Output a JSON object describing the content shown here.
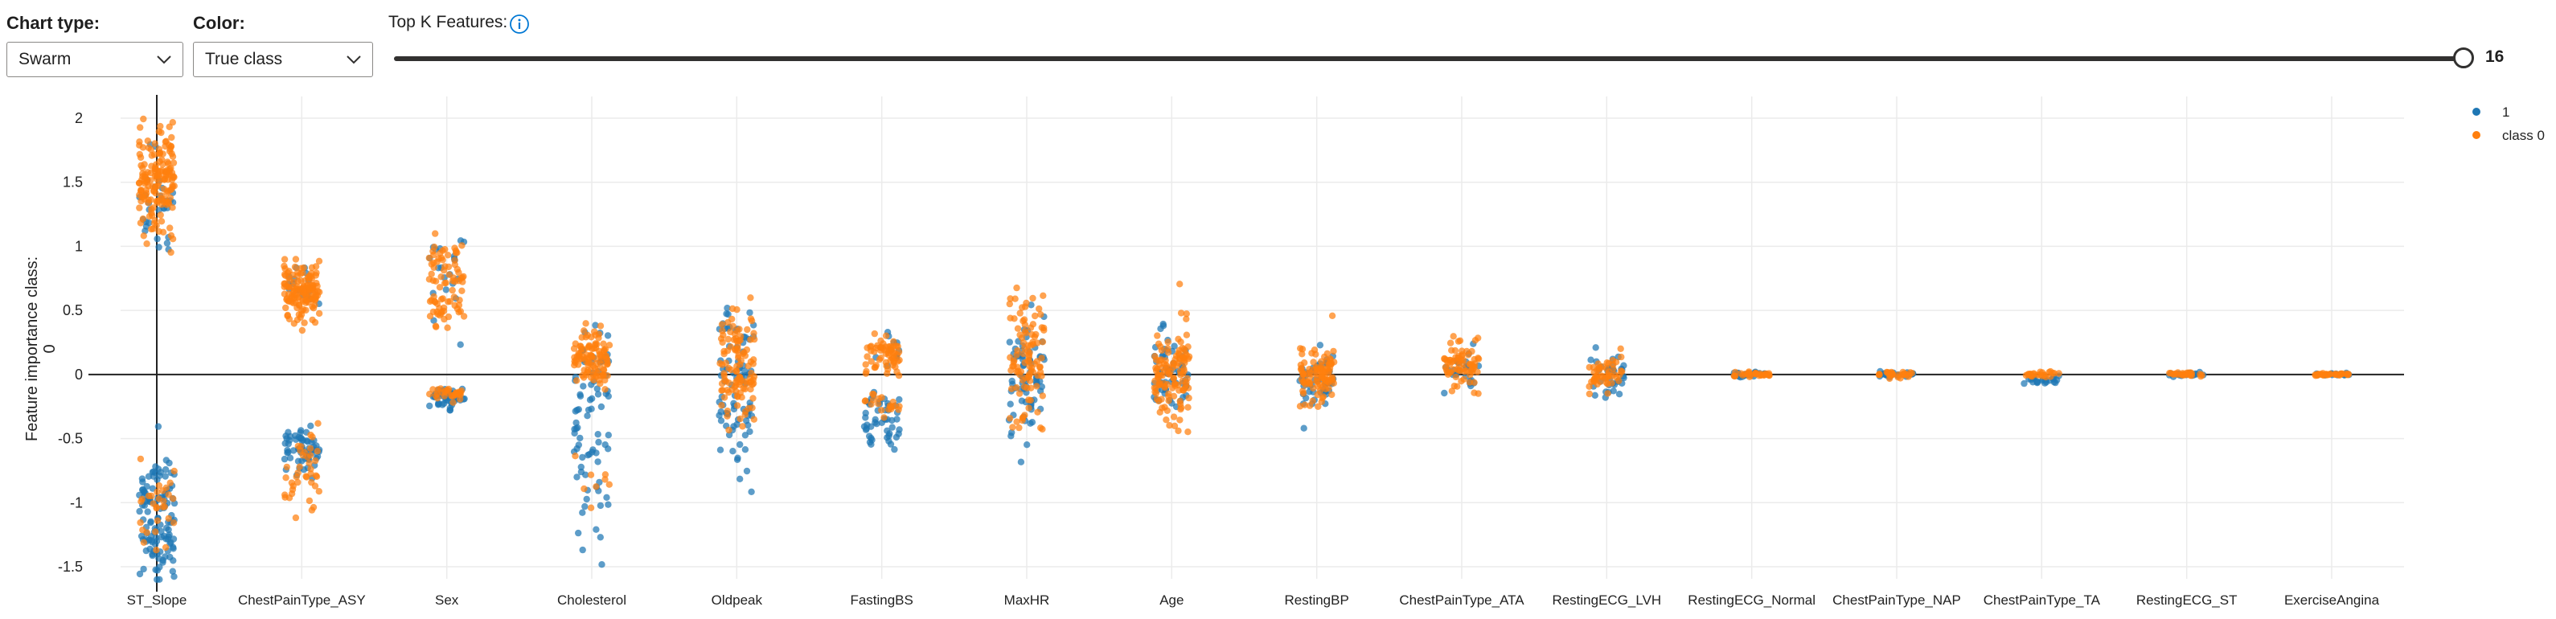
{
  "controls": {
    "chart_type": {
      "label": "Chart type:",
      "value": "Swarm"
    },
    "color": {
      "label": "Color:",
      "value": "True class"
    },
    "top_k": {
      "label": "Top K Features:",
      "value": "16"
    }
  },
  "colors": {
    "class_1": "#1f77b4",
    "class_0": "#ff7f0e",
    "zero_line": "#222222",
    "grid": "#ebebeb"
  },
  "chart_data": {
    "type": "scatter",
    "title": "",
    "xlabel": "",
    "ylabel": "Feature importance class: 0",
    "ylim": [
      -1.6,
      2.15
    ],
    "yticks": [
      2,
      1.5,
      1,
      0.5,
      0,
      -0.5,
      -1,
      -1.5
    ],
    "grid": true,
    "legend_position": "top-right",
    "categories": [
      "ST_Slope",
      "ChestPainType_ASY",
      "Sex",
      "Cholesterol",
      "Oldpeak",
      "FastingBS",
      "MaxHR",
      "Age",
      "RestingBP",
      "ChestPainType_ATA",
      "RestingECG_LVH",
      "RestingECG_Normal",
      "ChestPainType_NAP",
      "ChestPainType_TA",
      "RestingECG_ST",
      "ExerciseAngina"
    ],
    "series": [
      {
        "name": "1",
        "color": "#1f77b4",
        "clusters": [
          {
            "category": "ST_Slope",
            "center": -1.1,
            "spread": 0.25,
            "count": 120
          },
          {
            "category": "ST_Slope",
            "center": 1.3,
            "spread": 0.2,
            "count": 30
          },
          {
            "category": "ChestPainType_ASY",
            "center": -0.6,
            "spread": 0.12,
            "count": 60
          },
          {
            "category": "ChestPainType_ASY",
            "center": 0.72,
            "spread": 0.08,
            "count": 15
          },
          {
            "category": "Sex",
            "center": -0.18,
            "spread": 0.04,
            "count": 40
          },
          {
            "category": "Sex",
            "center": 0.75,
            "spread": 0.2,
            "count": 20
          },
          {
            "category": "Cholesterol",
            "center": -0.5,
            "spread": 0.35,
            "count": 60
          },
          {
            "category": "Cholesterol",
            "center": 0.15,
            "spread": 0.15,
            "count": 20
          },
          {
            "category": "Oldpeak",
            "center": -0.3,
            "spread": 0.25,
            "count": 50
          },
          {
            "category": "Oldpeak",
            "center": 0.2,
            "spread": 0.2,
            "count": 30
          },
          {
            "category": "FastingBS",
            "center": -0.35,
            "spread": 0.12,
            "count": 50
          },
          {
            "category": "FastingBS",
            "center": 0.2,
            "spread": 0.07,
            "count": 10
          },
          {
            "category": "MaxHR",
            "center": -0.05,
            "spread": 0.22,
            "count": 70
          },
          {
            "category": "Age",
            "center": 0.0,
            "spread": 0.18,
            "count": 60
          },
          {
            "category": "RestingBP",
            "center": -0.05,
            "spread": 0.13,
            "count": 50
          },
          {
            "category": "ChestPainType_ATA",
            "center": 0.02,
            "spread": 0.08,
            "count": 25
          },
          {
            "category": "RestingECG_LVH",
            "center": -0.03,
            "spread": 0.08,
            "count": 35
          },
          {
            "category": "RestingECG_Normal",
            "center": 0.0,
            "spread": 0.012,
            "count": 25
          },
          {
            "category": "ChestPainType_NAP",
            "center": 0.0,
            "spread": 0.012,
            "count": 25
          },
          {
            "category": "ChestPainType_TA",
            "center": -0.04,
            "spread": 0.02,
            "count": 25
          },
          {
            "category": "RestingECG_ST",
            "center": 0.0,
            "spread": 0.008,
            "count": 20
          },
          {
            "category": "ExerciseAngina",
            "center": 0.0,
            "spread": 0.004,
            "count": 15
          }
        ]
      },
      {
        "name": "class 0",
        "color": "#ff7f0e",
        "clusters": [
          {
            "category": "ST_Slope",
            "center": 1.5,
            "spread": 0.2,
            "count": 160
          },
          {
            "category": "ST_Slope",
            "center": -1.0,
            "spread": 0.15,
            "count": 30
          },
          {
            "category": "ChestPainType_ASY",
            "center": 0.65,
            "spread": 0.12,
            "count": 130
          },
          {
            "category": "ChestPainType_ASY",
            "center": -0.75,
            "spread": 0.15,
            "count": 40
          },
          {
            "category": "Sex",
            "center": 0.85,
            "spread": 0.15,
            "count": 50
          },
          {
            "category": "Sex",
            "center": 0.5,
            "spread": 0.07,
            "count": 30
          },
          {
            "category": "Sex",
            "center": -0.16,
            "spread": 0.03,
            "count": 30
          },
          {
            "category": "Cholesterol",
            "center": 0.15,
            "spread": 0.12,
            "count": 100
          },
          {
            "category": "Cholesterol",
            "center": -0.8,
            "spread": 0.15,
            "count": 8
          },
          {
            "category": "Oldpeak",
            "center": 0.1,
            "spread": 0.25,
            "count": 110
          },
          {
            "category": "FastingBS",
            "center": 0.15,
            "spread": 0.07,
            "count": 60
          },
          {
            "category": "FastingBS",
            "center": -0.25,
            "spread": 0.05,
            "count": 20
          },
          {
            "category": "MaxHR",
            "center": 0.1,
            "spread": 0.25,
            "count": 100
          },
          {
            "category": "Age",
            "center": 0.0,
            "spread": 0.18,
            "count": 120
          },
          {
            "category": "RestingBP",
            "center": 0.0,
            "spread": 0.12,
            "count": 100
          },
          {
            "category": "ChestPainType_ATA",
            "center": 0.06,
            "spread": 0.09,
            "count": 70
          },
          {
            "category": "RestingECG_LVH",
            "center": 0.0,
            "spread": 0.07,
            "count": 50
          },
          {
            "category": "RestingECG_Normal",
            "center": 0.0,
            "spread": 0.012,
            "count": 30
          },
          {
            "category": "ChestPainType_NAP",
            "center": 0.0,
            "spread": 0.012,
            "count": 30
          },
          {
            "category": "ChestPainType_TA",
            "center": 0.0,
            "spread": 0.015,
            "count": 25
          },
          {
            "category": "RestingECG_ST",
            "center": 0.0,
            "spread": 0.008,
            "count": 25
          },
          {
            "category": "ExerciseAngina",
            "center": 0.0,
            "spread": 0.004,
            "count": 35
          }
        ]
      }
    ]
  }
}
